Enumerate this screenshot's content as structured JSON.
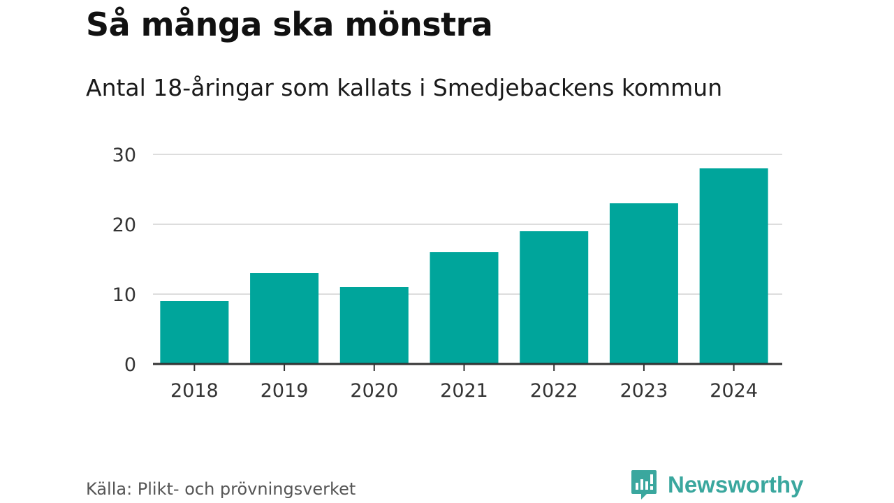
{
  "header": {
    "title": "Så många ska mönstra",
    "subtitle": "Antal 18-åringar som kallats i Smedjebackens kommun"
  },
  "footer": {
    "source": "Källa: Plikt- och prövningsverket",
    "brand": "Newsworthy"
  },
  "colors": {
    "bar": "#00a59b",
    "grid": "#dddddd",
    "axis": "#333333",
    "brand": "#3aa79e"
  },
  "chart_data": {
    "type": "bar",
    "categories": [
      "2018",
      "2019",
      "2020",
      "2021",
      "2022",
      "2023",
      "2024"
    ],
    "values": [
      9,
      13,
      11,
      16,
      19,
      23,
      28
    ],
    "ylim": [
      0,
      30
    ],
    "yticks": [
      0,
      10,
      20,
      30
    ],
    "grid": true
  }
}
